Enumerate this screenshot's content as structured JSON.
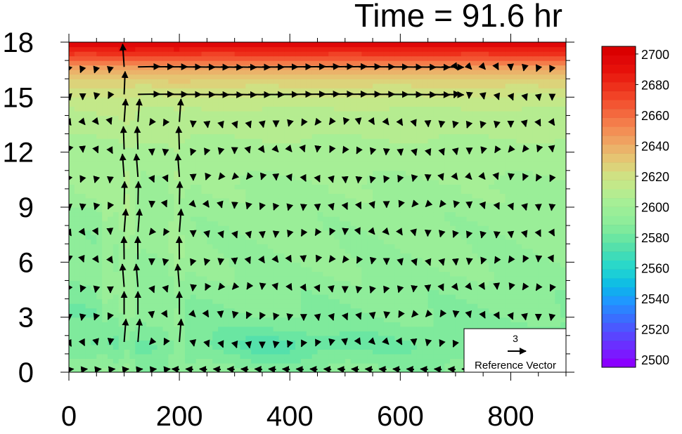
{
  "chart_data": {
    "type": "heatmap",
    "title": "Time = 91.6 hr",
    "xlabel": "",
    "ylabel": "",
    "xlim": [
      0,
      900
    ],
    "ylim": [
      0,
      18
    ],
    "xticks": [
      0,
      200,
      400,
      600,
      800
    ],
    "yticks": [
      0,
      3,
      6,
      9,
      12,
      15,
      18
    ],
    "grid": false,
    "overlay": "vector-field",
    "colorbar": {
      "levels": [
        2495,
        2500,
        2505,
        2510,
        2515,
        2520,
        2525,
        2530,
        2535,
        2540,
        2545,
        2550,
        2555,
        2560,
        2565,
        2570,
        2575,
        2580,
        2585,
        2590,
        2595,
        2600,
        2605,
        2610,
        2615,
        2620,
        2625,
        2630,
        2635,
        2640,
        2645,
        2650,
        2655,
        2660,
        2665,
        2670,
        2675,
        2680,
        2685,
        2690,
        2695,
        2700,
        2705
      ],
      "labels": [
        "2500",
        "2520",
        "2540",
        "2560",
        "2580",
        "2600",
        "2620",
        "2640",
        "2660",
        "2680",
        "2700"
      ],
      "label_values": [
        2500,
        2520,
        2540,
        2560,
        2580,
        2600,
        2620,
        2640,
        2660,
        2680,
        2700
      ],
      "colors": [
        "#8a00ff",
        "#7a1aff",
        "#6a2fff",
        "#5a44ff",
        "#4a59ff",
        "#3a6eff",
        "#2c83ff",
        "#1f98ff",
        "#12acf0",
        "#10bfe3",
        "#1ccfd6",
        "#2ad8c9",
        "#3edcb9",
        "#55e0ab",
        "#6ae6a2",
        "#7fea9c",
        "#8fed9a",
        "#9aee98",
        "#a6ef96",
        "#b5ec90",
        "#c3e889",
        "#cfe183",
        "#dcd37a",
        "#e6c472",
        "#ebb36a",
        "#f0a160",
        "#f38f55",
        "#f47c4a",
        "#f4683e",
        "#f35532",
        "#f14226",
        "#ee301b",
        "#ea1f12",
        "#e6100a",
        "#e00808",
        "#da0000"
      ],
      "placement": "right"
    },
    "reference_vector": {
      "magnitude": "3",
      "label": "Reference Vector"
    },
    "field": {
      "description_values": "approximate field value by height band",
      "z": [
        0,
        1.5,
        3,
        6,
        9,
        12,
        14.5,
        15.5,
        16.5,
        17.2,
        18
      ],
      "value": [
        2590,
        2582,
        2588,
        2594,
        2597,
        2603,
        2612,
        2622,
        2638,
        2670,
        2700
      ]
    }
  }
}
